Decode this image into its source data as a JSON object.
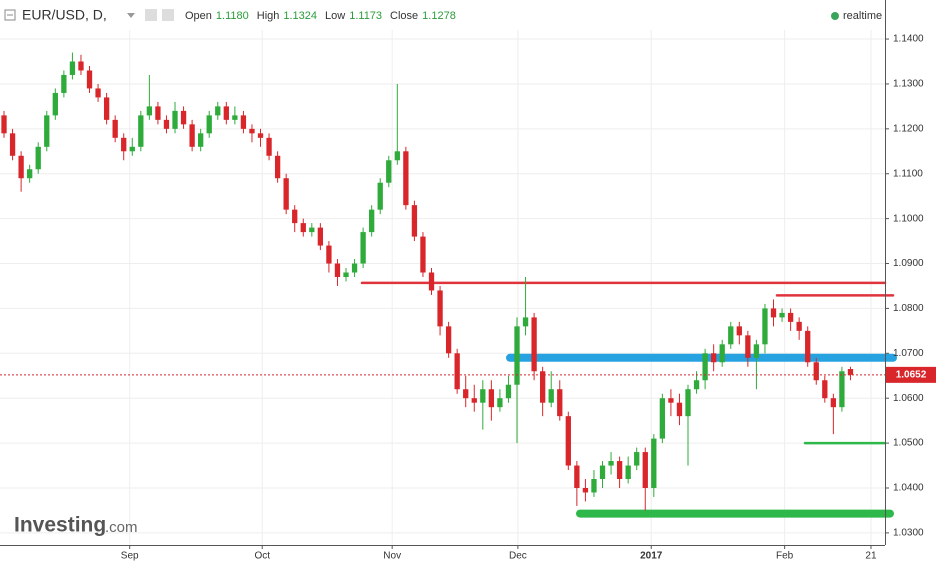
{
  "chart_data": {
    "type": "candlestick",
    "title": "EUR/USD, D,",
    "ohlc_legend": [
      {
        "label": "Open",
        "value": "1.1180"
      },
      {
        "label": "High",
        "value": "1.1324"
      },
      {
        "label": "Low",
        "value": "1.1173"
      },
      {
        "label": "Close",
        "value": "1.1278"
      }
    ],
    "status": "realtime",
    "brand": "Investing",
    "brand_suffix": ".com",
    "up_color": "#2eab3a",
    "down_color": "#d8262b",
    "open": [
      1.123,
      1.119,
      1.114,
      1.109,
      1.111,
      1.116,
      1.123,
      1.128,
      1.132,
      1.135,
      1.133,
      1.129,
      1.127,
      1.122,
      1.118,
      1.115,
      1.116,
      1.123,
      1.125,
      1.122,
      1.12,
      1.124,
      1.121,
      1.116,
      1.119,
      1.123,
      1.125,
      1.122,
      1.123,
      1.12,
      1.119,
      1.118,
      1.114,
      1.109,
      1.102,
      1.099,
      1.097,
      1.098,
      1.094,
      1.09,
      1.087,
      1.088,
      1.09,
      1.097,
      1.102,
      1.108,
      1.113,
      1.115,
      1.103,
      1.096,
      1.088,
      1.084,
      1.076,
      1.07,
      1.062,
      1.06,
      1.059,
      1.062,
      1.058,
      1.06,
      1.063,
      1.076,
      1.078,
      1.066,
      1.059,
      1.062,
      1.056,
      1.045,
      1.04,
      1.039,
      1.042,
      1.045,
      1.046,
      1.042,
      1.045,
      1.048,
      1.04,
      1.051,
      1.06,
      1.059,
      1.056,
      1.062,
      1.064,
      1.07,
      1.068,
      1.072,
      1.076,
      1.074,
      1.069,
      1.072,
      1.08,
      1.078,
      1.079,
      1.077,
      1.075,
      1.068,
      1.064,
      1.06,
      1.058,
      1.0665
    ],
    "high": [
      1.124,
      1.12,
      1.115,
      1.112,
      1.117,
      1.124,
      1.129,
      1.133,
      1.137,
      1.1365,
      1.134,
      1.13,
      1.128,
      1.123,
      1.119,
      1.118,
      1.124,
      1.132,
      1.126,
      1.123,
      1.126,
      1.125,
      1.122,
      1.12,
      1.124,
      1.126,
      1.126,
      1.125,
      1.124,
      1.121,
      1.12,
      1.119,
      1.115,
      1.11,
      1.103,
      1.1,
      1.099,
      1.099,
      1.095,
      1.091,
      1.089,
      1.091,
      1.098,
      1.103,
      1.109,
      1.114,
      1.13,
      1.116,
      1.104,
      1.097,
      1.089,
      1.085,
      1.077,
      1.071,
      1.065,
      1.063,
      1.064,
      1.064,
      1.062,
      1.065,
      1.078,
      1.087,
      1.079,
      1.067,
      1.066,
      1.064,
      1.057,
      1.046,
      1.042,
      1.044,
      1.046,
      1.048,
      1.047,
      1.047,
      1.049,
      1.049,
      1.052,
      1.061,
      1.062,
      1.061,
      1.063,
      1.066,
      1.071,
      1.072,
      1.073,
      1.077,
      1.077,
      1.075,
      1.073,
      1.081,
      1.082,
      1.08,
      1.08,
      1.078,
      1.076,
      1.069,
      1.065,
      1.061,
      1.067,
      1.067
    ],
    "low": [
      1.118,
      1.113,
      1.106,
      1.108,
      1.11,
      1.115,
      1.122,
      1.127,
      1.131,
      1.132,
      1.128,
      1.126,
      1.121,
      1.117,
      1.113,
      1.114,
      1.115,
      1.122,
      1.121,
      1.119,
      1.119,
      1.12,
      1.115,
      1.115,
      1.118,
      1.122,
      1.121,
      1.121,
      1.119,
      1.117,
      1.116,
      1.113,
      1.108,
      1.101,
      1.097,
      1.096,
      1.096,
      1.093,
      1.088,
      1.085,
      1.086,
      1.087,
      1.089,
      1.096,
      1.101,
      1.107,
      1.112,
      1.102,
      1.095,
      1.087,
      1.083,
      1.074,
      1.069,
      1.061,
      1.058,
      1.057,
      1.053,
      1.055,
      1.057,
      1.059,
      1.05,
      1.074,
      1.064,
      1.056,
      1.058,
      1.055,
      1.044,
      1.036,
      1.037,
      1.038,
      1.04,
      1.043,
      1.04,
      1.041,
      1.044,
      1.035,
      1.038,
      1.05,
      1.056,
      1.054,
      1.045,
      1.061,
      1.062,
      1.066,
      1.067,
      1.071,
      1.072,
      1.067,
      1.062,
      1.07,
      1.076,
      1.077,
      1.075,
      1.073,
      1.067,
      1.063,
      1.059,
      1.052,
      1.057,
      1.064
    ],
    "close": [
      1.119,
      1.114,
      1.109,
      1.111,
      1.116,
      1.123,
      1.128,
      1.132,
      1.135,
      1.133,
      1.129,
      1.127,
      1.122,
      1.118,
      1.115,
      1.116,
      1.123,
      1.125,
      1.122,
      1.12,
      1.124,
      1.121,
      1.116,
      1.119,
      1.123,
      1.125,
      1.122,
      1.123,
      1.12,
      1.119,
      1.118,
      1.114,
      1.109,
      1.102,
      1.099,
      1.097,
      1.098,
      1.094,
      1.09,
      1.087,
      1.088,
      1.09,
      1.097,
      1.102,
      1.108,
      1.113,
      1.115,
      1.103,
      1.096,
      1.088,
      1.084,
      1.076,
      1.07,
      1.062,
      1.06,
      1.059,
      1.062,
      1.058,
      1.06,
      1.063,
      1.076,
      1.078,
      1.066,
      1.059,
      1.062,
      1.056,
      1.045,
      1.04,
      1.039,
      1.042,
      1.045,
      1.046,
      1.042,
      1.045,
      1.048,
      1.04,
      1.051,
      1.06,
      1.059,
      1.056,
      1.062,
      1.064,
      1.07,
      1.068,
      1.072,
      1.076,
      1.074,
      1.069,
      1.072,
      1.08,
      1.078,
      1.079,
      1.077,
      1.075,
      1.068,
      1.064,
      1.06,
      1.058,
      1.066,
      1.0652
    ],
    "levels": [
      {
        "value": 1.0857,
        "color": "#e0343d"
      },
      {
        "value": 1.0829,
        "color": "#e0343d"
      },
      {
        "value": 1.069,
        "color": "#27a2e0"
      },
      {
        "value": 1.05,
        "color": "#2eb84a"
      },
      {
        "value": 1.0343,
        "color": "#2eb84a"
      }
    ],
    "ylim": [
      1.0273,
      1.1487
    ],
    "yticks": [
      {
        "value": 1.03,
        "label": "1.0300"
      },
      {
        "value": 1.04,
        "label": "1.0400"
      },
      {
        "value": 1.05,
        "label": "1.0500"
      },
      {
        "value": 1.06,
        "label": "1.0600"
      },
      {
        "value": 1.07,
        "label": "1.0700"
      },
      {
        "value": 1.08,
        "label": "1.0800"
      },
      {
        "value": 1.09,
        "label": "1.0900"
      },
      {
        "value": 1.1,
        "label": "1.1000"
      },
      {
        "value": 1.11,
        "label": "1.1100"
      },
      {
        "value": 1.12,
        "label": "1.1200"
      },
      {
        "value": 1.13,
        "label": "1.1300"
      },
      {
        "value": 1.14,
        "label": "1.1400"
      }
    ],
    "xlim": [
      -0.47,
      103.04
    ],
    "xticks": [
      {
        "value": 14.7,
        "label": "Sep"
      },
      {
        "value": 30.2,
        "label": "Oct"
      },
      {
        "value": 45.4,
        "label": "Nov"
      },
      {
        "value": 60.1,
        "label": "Dec"
      },
      {
        "value": 75.7,
        "label": "2017"
      },
      {
        "value": 91.3,
        "label": "Feb"
      },
      {
        "value": 101.4,
        "label": "21"
      }
    ],
    "grid": true
  }
}
